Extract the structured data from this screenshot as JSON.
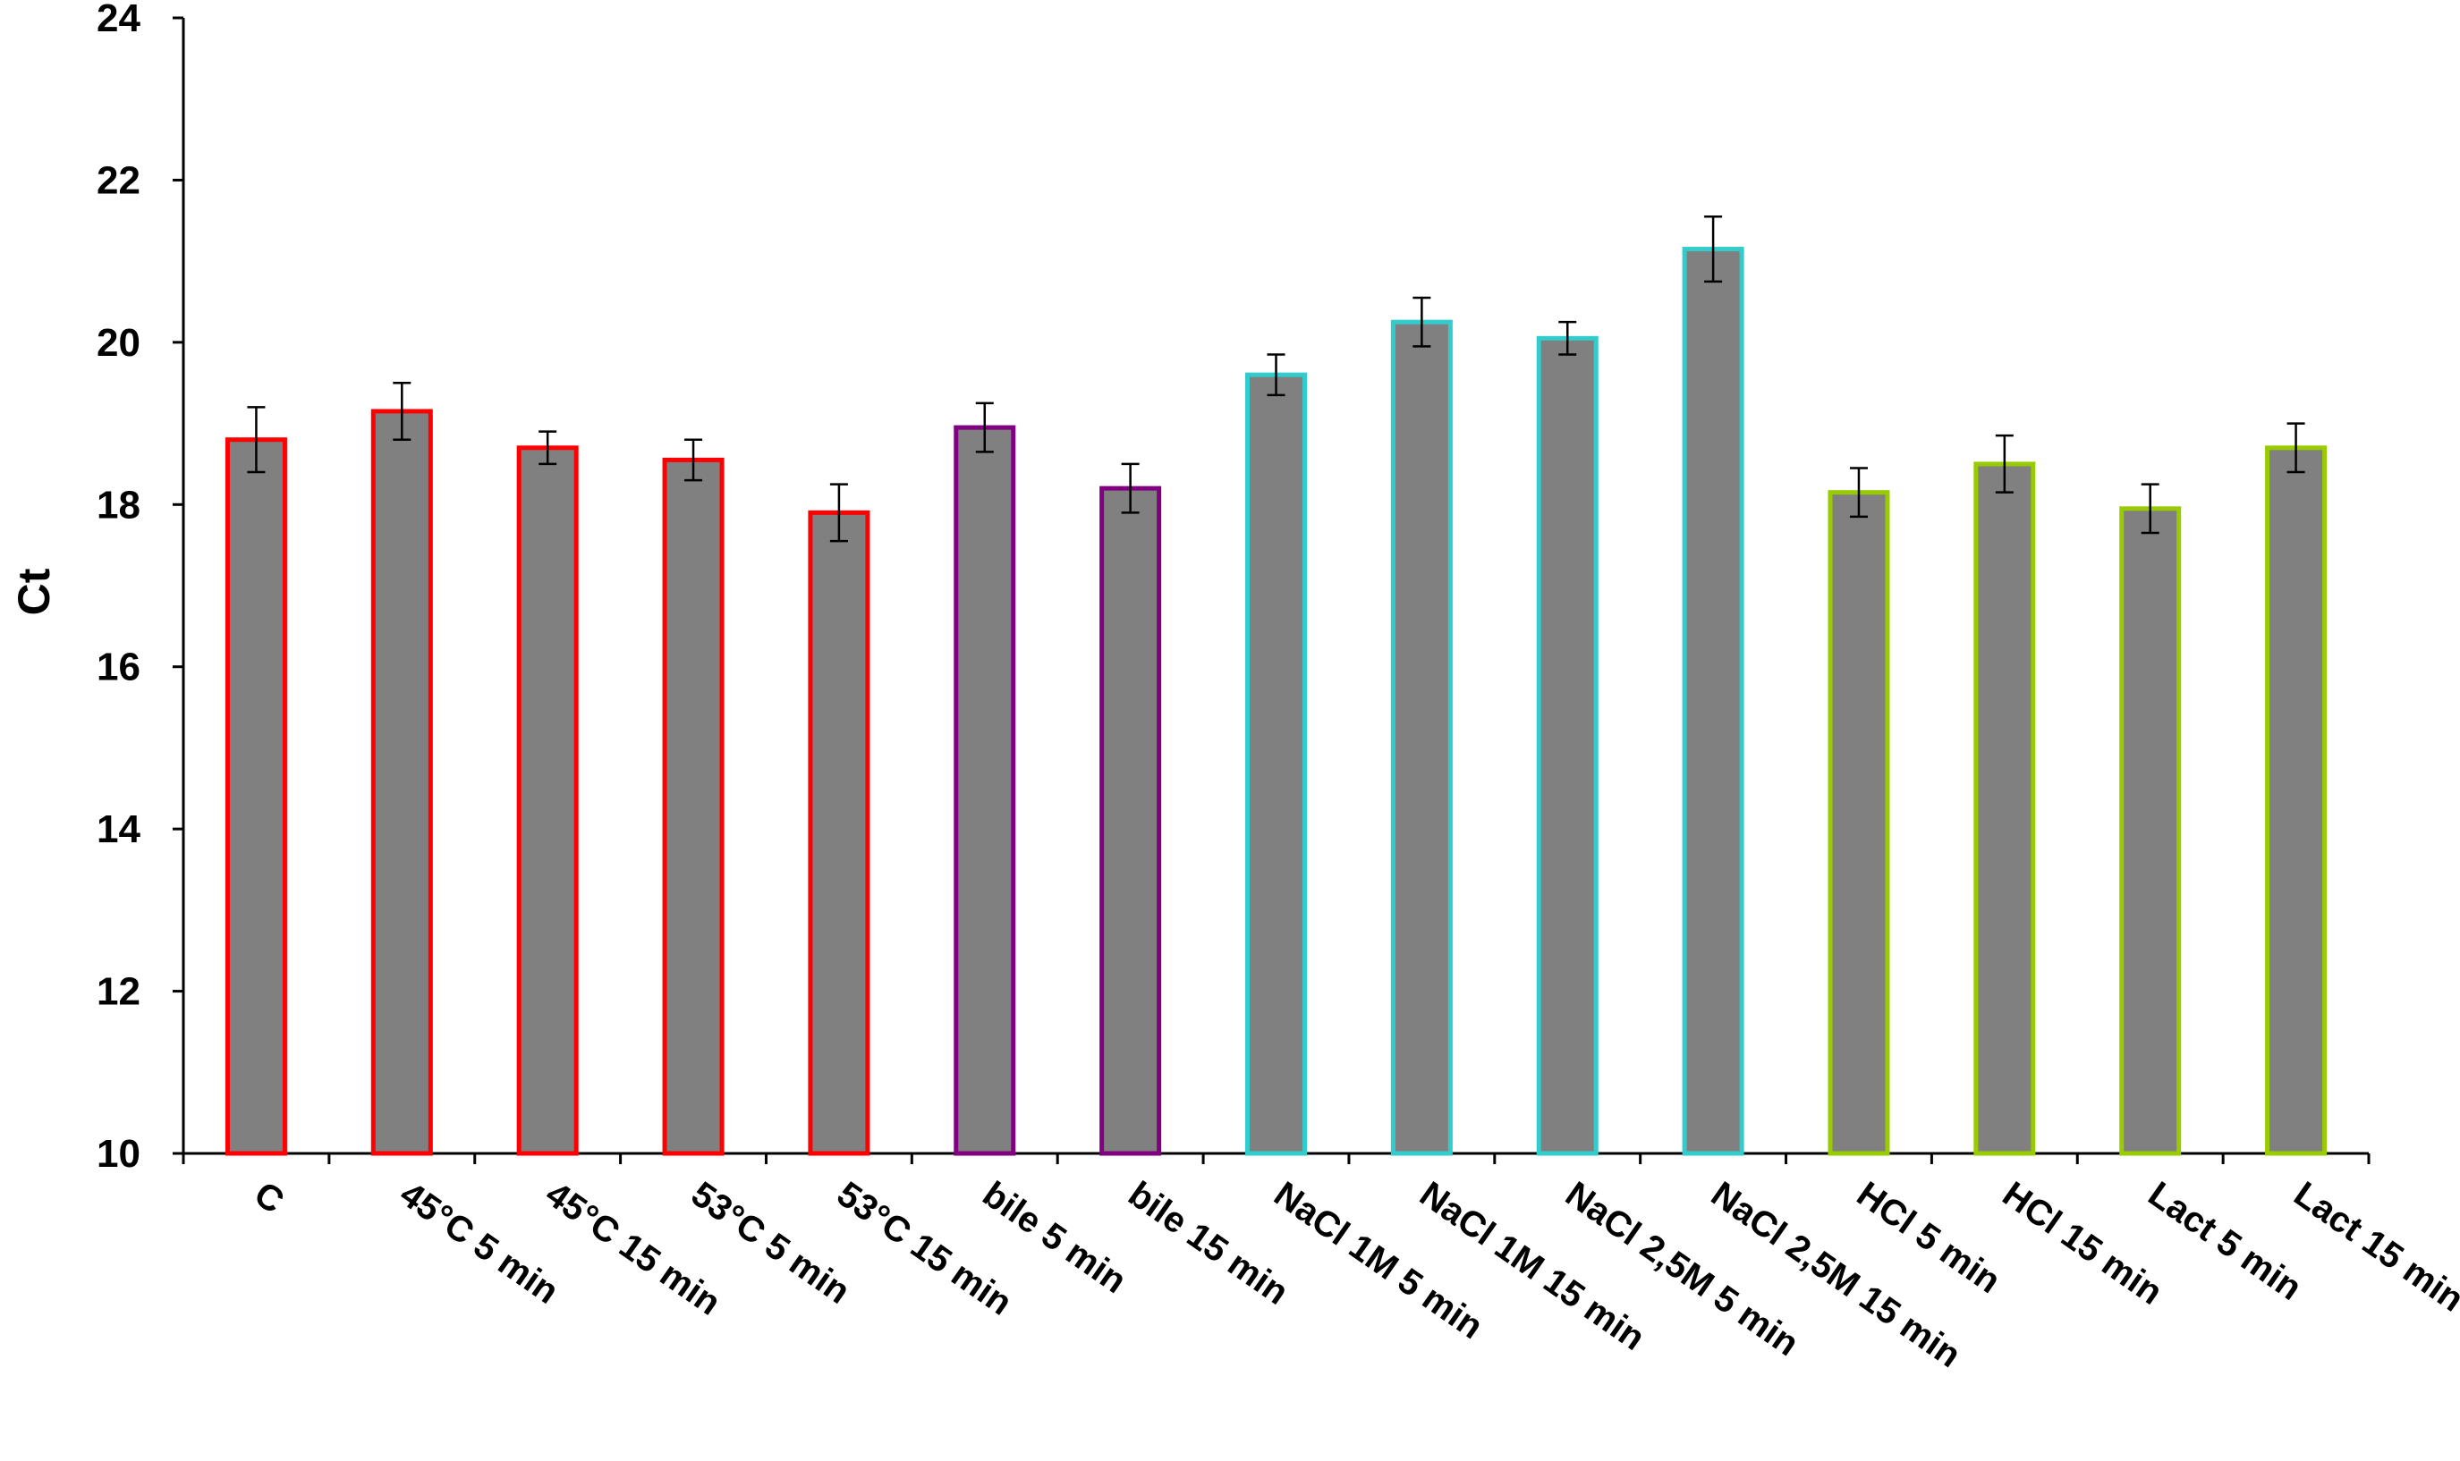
{
  "chart_data": {
    "type": "bar",
    "title": "",
    "xlabel": "",
    "ylabel": "Ct",
    "ylim": [
      10,
      24
    ],
    "yticks": [
      10,
      12,
      14,
      16,
      18,
      20,
      22,
      24
    ],
    "grid": false,
    "legend": "none",
    "bar_fill": "#808080",
    "categories": [
      "C",
      "45°C 5 min",
      "45°C 15 min",
      "53°C 5 min",
      "53°C 15 min",
      "bile 5 min",
      "bile 15 min",
      "NaCl 1M 5 min",
      "NaCl 1M 15 min",
      "NaCl 2,5M 5 min",
      "NaCl 2,5M 15 min",
      "HCl 5 min",
      "HCl 15 min",
      "Lact 5 min",
      "Lact 15 min"
    ],
    "values": [
      18.8,
      19.15,
      18.7,
      18.55,
      17.9,
      18.95,
      18.2,
      19.6,
      20.25,
      20.05,
      21.15,
      18.15,
      18.5,
      17.95,
      18.7
    ],
    "errors": [
      0.4,
      0.35,
      0.2,
      0.25,
      0.35,
      0.3,
      0.3,
      0.25,
      0.3,
      0.2,
      0.4,
      0.3,
      0.35,
      0.3,
      0.3
    ],
    "outline_colors": [
      "#ff0000",
      "#ff0000",
      "#ff0000",
      "#ff0000",
      "#ff0000",
      "#800080",
      "#800080",
      "#33cccc",
      "#33cccc",
      "#33cccc",
      "#33cccc",
      "#99cc00",
      "#99cc00",
      "#99cc00",
      "#99cc00"
    ]
  }
}
